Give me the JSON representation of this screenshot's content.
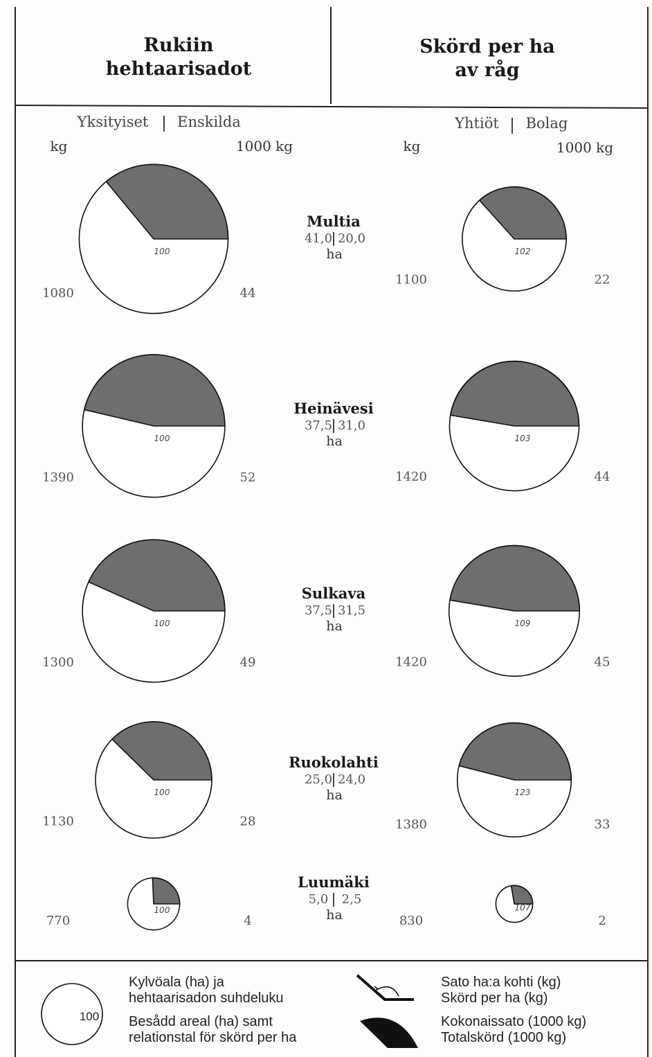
{
  "header": {
    "left_title_1": "Rukiin",
    "left_title_2": "hehtaarisadot",
    "right_title_1": "Skörd per ha",
    "right_title_2": "av råg"
  },
  "columns": {
    "private_fi": "Yksityiset",
    "private_sv": "Enskilda",
    "company_fi": "Yhtiöt",
    "company_sv": "Bolag",
    "unit_kg": "kg",
    "unit_1000kg": "1000 kg"
  },
  "chart_data": {
    "type": "pie",
    "series": [
      {
        "name": "Yksityiset | Enskilda"
      },
      {
        "name": "Yhtiöt | Bolag"
      }
    ],
    "rows": [
      {
        "name": "Multia",
        "area_private": "41,0",
        "area_company": "20,0",
        "area_unit": "ha",
        "private": {
          "yield_kg_per_ha": 1080,
          "total_1000kg": 44,
          "relative_index": 100
        },
        "company": {
          "yield_kg_per_ha": 1100,
          "total_1000kg": 22,
          "relative_index": 102
        }
      },
      {
        "name": "Heinävesi",
        "area_private": "37,5",
        "area_company": "31,0",
        "area_unit": "ha",
        "private": {
          "yield_kg_per_ha": 1390,
          "total_1000kg": 52,
          "relative_index": 100
        },
        "company": {
          "yield_kg_per_ha": 1420,
          "total_1000kg": 44,
          "relative_index": 103
        }
      },
      {
        "name": "Sulkava",
        "area_private": "37,5",
        "area_company": "31,5",
        "area_unit": "ha",
        "private": {
          "yield_kg_per_ha": 1300,
          "total_1000kg": 49,
          "relative_index": 100
        },
        "company": {
          "yield_kg_per_ha": 1420,
          "total_1000kg": 45,
          "relative_index": 109
        }
      },
      {
        "name": "Ruokolahti",
        "area_private": "25,0",
        "area_company": "24,0",
        "area_unit": "ha",
        "private": {
          "yield_kg_per_ha": 1130,
          "total_1000kg": 28,
          "relative_index": 100
        },
        "company": {
          "yield_kg_per_ha": 1380,
          "total_1000kg": 33,
          "relative_index": 123
        }
      },
      {
        "name": "Luumäki",
        "area_private": "5,0",
        "area_company": "2,5",
        "area_unit": "ha",
        "private": {
          "yield_kg_per_ha": 770,
          "total_1000kg": 4,
          "relative_index": 100
        },
        "company": {
          "yield_kg_per_ha": 830,
          "total_1000kg": 2,
          "relative_index": 107
        }
      }
    ]
  },
  "legend": {
    "circle_index": "100",
    "circle_fi_1": "Kylvöala (ha) ja",
    "circle_fi_2": "hehtaarisadon suhdeluku",
    "circle_sv_1": "Besådd areal (ha) samt",
    "circle_sv_2": "relationstal för skörd per ha",
    "angle_fi": "Sato ha:a kohti (kg)",
    "angle_sv": "Skörd per ha (kg)",
    "sector_fi": "Kokonaissato (1000 kg)",
    "sector_sv": "Totalskörd (1000 kg)"
  },
  "colors": {
    "sector_fill": "#6e6e6e",
    "circle_fill": "#ffffff",
    "stroke": "#111111"
  }
}
